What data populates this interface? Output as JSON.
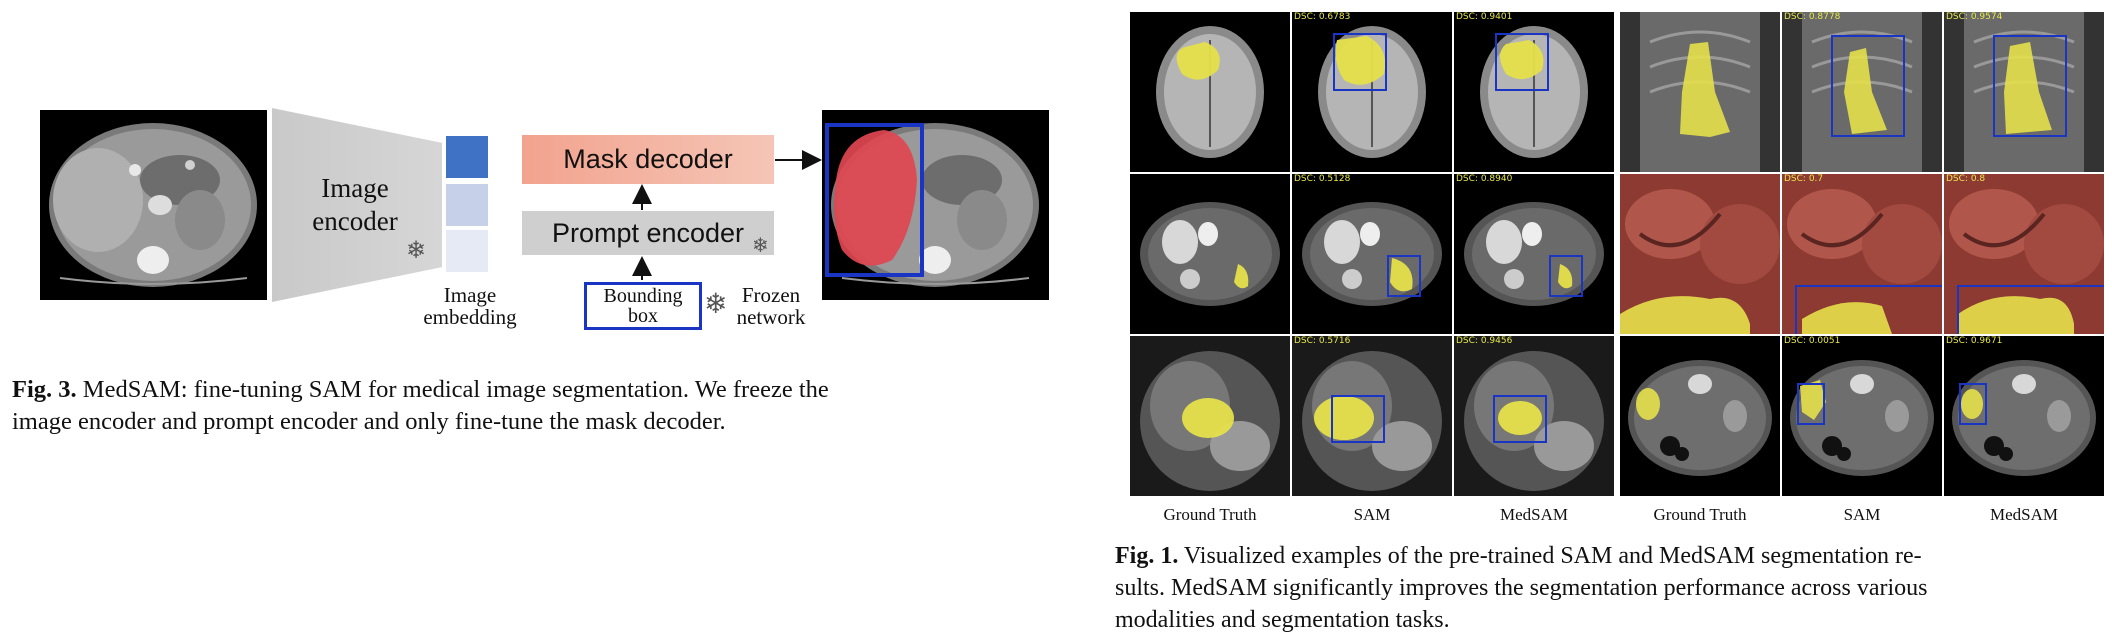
{
  "fig3": {
    "encoder_label_1": "Image",
    "encoder_label_2": "encoder",
    "embedding_label_1": "Image",
    "embedding_label_2": "embedding",
    "mask_decoder": "Mask decoder",
    "prompt_encoder": "Prompt encoder",
    "bbox_label_1": "Bounding",
    "bbox_label_2": "box",
    "frozen_label_1": "Frozen",
    "frozen_label_2": "network",
    "caption_prefix": "Fig. 3.",
    "caption_line1": "MedSAM: fine-tuning SAM for medical image segmentation. We freeze the",
    "caption_line2": "image encoder and prompt encoder and only fine-tune the mask decoder."
  },
  "fig1": {
    "rows": [
      {
        "left_dsc": [
          "",
          "DSC: 0.6783",
          "DSC: 0.9401"
        ],
        "right_dsc": [
          "",
          "DSC: 0.8778",
          "DSC: 0.9574"
        ]
      },
      {
        "left_dsc": [
          "",
          "DSC: 0.5128",
          "DSC: 0.8940"
        ],
        "right_dsc": [
          "",
          "DSC: 0.7",
          "DSC: 0.8"
        ]
      },
      {
        "left_dsc": [
          "",
          "DSC: 0.5716",
          "DSC: 0.9456"
        ],
        "right_dsc": [
          "",
          "DSC: 0.0051",
          "DSC: 0.9671"
        ]
      }
    ],
    "column_labels": [
      "Ground Truth",
      "SAM",
      "MedSAM",
      "Ground Truth",
      "SAM",
      "MedSAM"
    ],
    "caption_prefix": "Fig. 1.",
    "caption_line1": "Visualized examples of the pre-trained SAM and MedSAM segmentation re-",
    "caption_line2": "sults. MedSAM significantly improves the segmentation performance across various",
    "caption_line3": "modalities and segmentation tasks."
  },
  "colors": {
    "mask_yellow": "#e6e04a",
    "box_blue": "#1a34c4",
    "mask_red": "#e04550"
  }
}
